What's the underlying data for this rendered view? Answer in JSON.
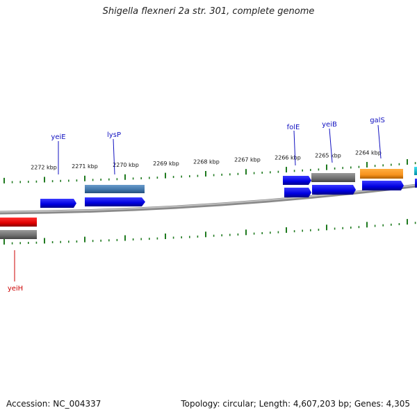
{
  "title": "Shigella flexneri 2a str. 301, complete genome",
  "footer": {
    "accession": "Accession: NC_004337",
    "summary": "Topology: circular; Length: 4,607,203 bp; Genes: 4,305"
  },
  "colors": {
    "forward_gene": "#0000ee",
    "reverse_gene": "#ee0000",
    "other_feature": "#777777",
    "steelblue_feature": "#4a7fb0",
    "orange_feature": "#f7931e",
    "cyan_feature": "#00c0d8",
    "tick": "#1f7a1f",
    "backbone": "#888888",
    "forward_label": "#1010c0",
    "reverse_label": "#cc0000"
  },
  "scale_labels": [
    "2272 kbp",
    "2271 kbp",
    "2270 kbp",
    "2269 kbp",
    "2268 kbp",
    "2267 kbp",
    "2266 kbp",
    "2265 kbp",
    "2264 kbp"
  ],
  "genes": [
    {
      "name": "yeiE",
      "strand": "forward"
    },
    {
      "name": "lysP",
      "strand": "forward"
    },
    {
      "name": "folE",
      "strand": "forward"
    },
    {
      "name": "yeiB",
      "strand": "forward"
    },
    {
      "name": "galS",
      "strand": "forward"
    },
    {
      "name": "yeiH",
      "strand": "reverse"
    }
  ]
}
